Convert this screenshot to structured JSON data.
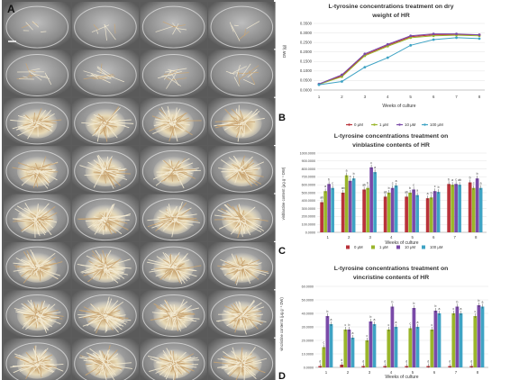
{
  "panels": {
    "a": "A",
    "b": "B",
    "c": "C",
    "d": "D"
  },
  "photo_grid": {
    "rows": 8,
    "cols": 4
  },
  "colors": {
    "s0": "#b9323a",
    "s1": "#9ab52b",
    "s10": "#7a4aa8",
    "s100": "#3fa3c4",
    "dish_bg": "#6e6e6e",
    "root_light": "#f3ead2",
    "root_warm": "#c9a573"
  },
  "chart_data": [
    {
      "type": "line",
      "title_line1": "L-tyrosine concentrations treatment on dry",
      "title_line2": "weight of HR",
      "xlabel": "Weeks of culture",
      "ylabel": "DW (g)",
      "x": [
        1,
        2,
        3,
        4,
        5,
        6,
        7,
        8
      ],
      "ylim": [
        0,
        0.35
      ],
      "yticks": [
        "0.0000",
        "0.0500",
        "0.1000",
        "0.1500",
        "0.2000",
        "0.2500",
        "0.3000",
        "0.3500"
      ],
      "legend_position": "bottom",
      "series": [
        {
          "name": "0 μM",
          "values": [
            0.03,
            0.075,
            0.185,
            0.235,
            0.28,
            0.29,
            0.29,
            0.29
          ]
        },
        {
          "name": "1 μM",
          "values": [
            0.03,
            0.07,
            0.18,
            0.23,
            0.275,
            0.285,
            0.288,
            0.285
          ]
        },
        {
          "name": "10 μM",
          "values": [
            0.032,
            0.08,
            0.19,
            0.24,
            0.285,
            0.295,
            0.295,
            0.29
          ]
        },
        {
          "name": "100 μM",
          "values": [
            0.028,
            0.045,
            0.12,
            0.17,
            0.235,
            0.265,
            0.275,
            0.27
          ]
        }
      ]
    },
    {
      "type": "bar",
      "title_line1": "L-tyrosine concentrations treatment on",
      "title_line2": "vinblastine contents of HR",
      "xlabel": "Weeks of culture",
      "ylabel": "vinblastine content (μg.g⁻¹ DW)",
      "categories": [
        "1",
        "2",
        "3",
        "4",
        "5",
        "6",
        "7",
        "8"
      ],
      "ylim": [
        0,
        1000
      ],
      "yticks": [
        "0.0000",
        "100.0000",
        "200.0000",
        "300.0000",
        "400.0000",
        "500.0000",
        "600.0000",
        "700.0000",
        "800.0000",
        "900.0000",
        "1000.0000"
      ],
      "legend_position": "bottom",
      "bar_labels": [
        "ab",
        "a",
        "b",
        "c",
        "ab",
        "a",
        "c",
        "b",
        "ab",
        "b",
        "c",
        "a",
        "ab",
        "b",
        "c",
        "a",
        "ab",
        "b",
        "c",
        "a",
        "a",
        "b",
        "c",
        "b",
        "b",
        "a",
        "c",
        "ab",
        "b",
        "c",
        "b",
        "a"
      ],
      "series": [
        {
          "name": "0 μM",
          "values": [
            380,
            500,
            540,
            450,
            450,
            430,
            610,
            630
          ]
        },
        {
          "name": "1 μM",
          "values": [
            520,
            720,
            560,
            500,
            500,
            440,
            600,
            560
          ]
        },
        {
          "name": "10 μM",
          "values": [
            610,
            650,
            820,
            560,
            540,
            520,
            610,
            680
          ]
        },
        {
          "name": "100 μM",
          "values": [
            560,
            680,
            760,
            590,
            470,
            510,
            600,
            560
          ]
        }
      ]
    },
    {
      "type": "bar",
      "title_line1": "L-tyrosine concentrations treatment on",
      "title_line2": "vincristine contents of HR",
      "xlabel": "Weeks of culture",
      "ylabel": "vincristine contents (μg.g⁻¹ DW)",
      "categories": [
        "1",
        "2",
        "3",
        "4",
        "5",
        "6",
        "7",
        "8"
      ],
      "ylim": [
        0,
        60
      ],
      "yticks": [
        "0.0000",
        "10.0000",
        "20.0000",
        "30.0000",
        "40.0000",
        "50.0000",
        "60.0000"
      ],
      "legend_position": "bottom",
      "bar_labels": [
        "d",
        "c",
        "b",
        "a",
        "d",
        "c",
        "b",
        "a",
        "d",
        "c",
        "b",
        "a",
        "d",
        "c",
        "b",
        "a",
        "d",
        "c",
        "b",
        "a",
        "d",
        "c",
        "b",
        "a",
        "d",
        "c",
        "b",
        "a",
        "d",
        "c",
        "b",
        "a"
      ],
      "series": [
        {
          "name": "0 μM",
          "values": [
            1,
            2,
            1,
            1,
            1,
            1,
            1,
            1
          ]
        },
        {
          "name": "1 μM",
          "values": [
            15,
            28,
            20,
            28,
            29,
            28,
            40,
            38
          ]
        },
        {
          "name": "10 μM",
          "values": [
            38,
            28,
            34,
            45,
            44,
            42,
            45,
            46
          ]
        },
        {
          "name": "100 μM",
          "values": [
            32,
            22,
            32,
            30,
            30,
            40,
            40,
            45
          ]
        }
      ]
    }
  ]
}
